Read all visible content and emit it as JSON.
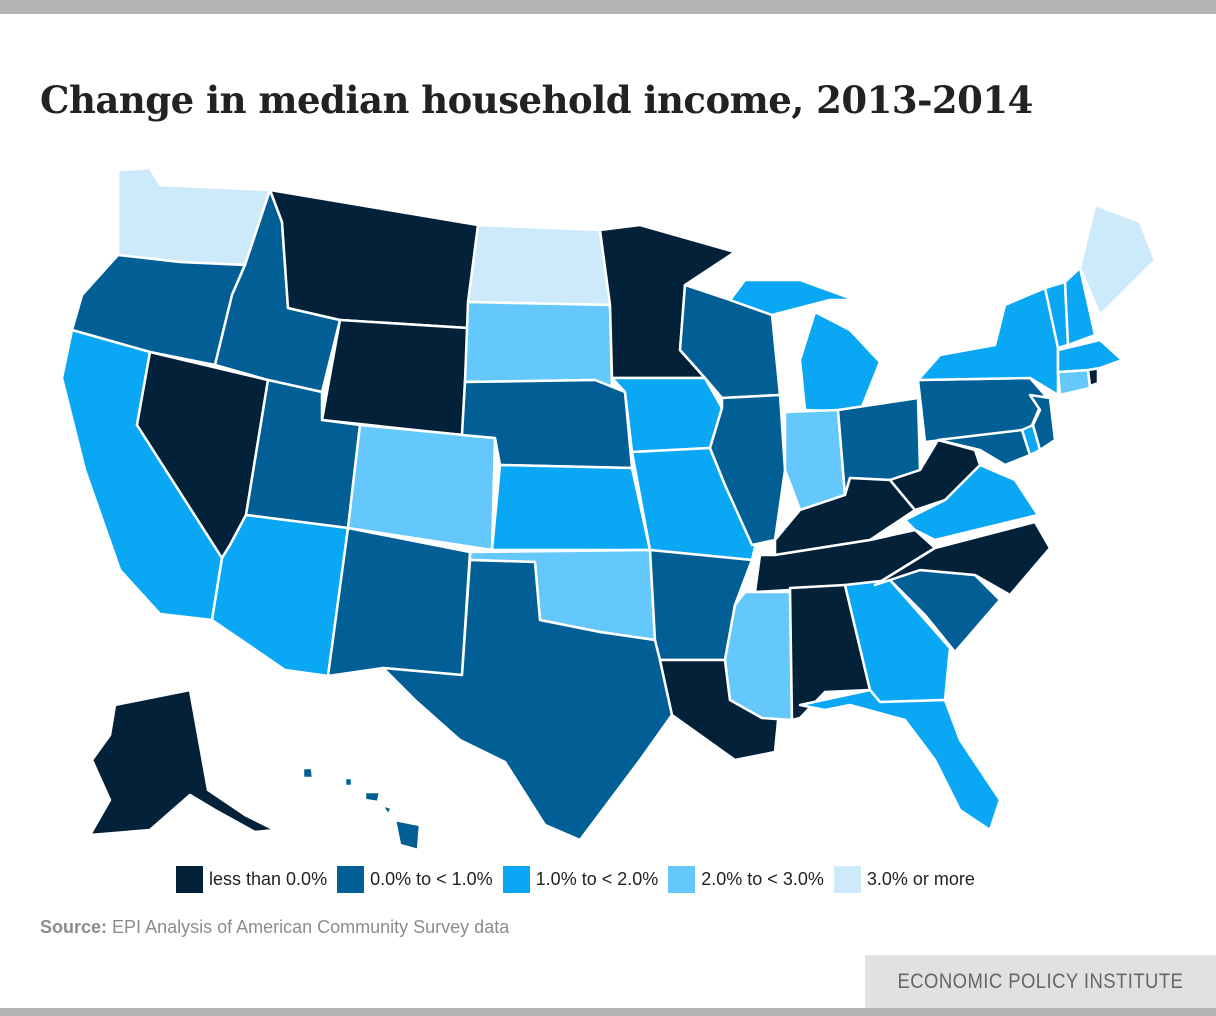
{
  "title": "Change in median household income, 2013-2014",
  "legend": [
    {
      "label": "less than 0.0%",
      "color": "#04213a"
    },
    {
      "label": "0.0% to < 1.0%",
      "color": "#015f96"
    },
    {
      "label": "1.0% to < 2.0%",
      "color": "#0aa7f5"
    },
    {
      "label": "2.0% to < 3.0%",
      "color": "#64c8fc"
    },
    {
      "label": "3.0% or more",
      "color": "#cdeafb"
    }
  ],
  "source": {
    "prefix": "Source:",
    "text": "EPI Analysis of American Community Survey data"
  },
  "brand": "ECONOMIC POLICY INSTITUTE",
  "states": {
    "WA": 4,
    "OR": 1,
    "CA": 2,
    "NV": 0,
    "ID": 1,
    "MT": 0,
    "WY": 0,
    "UT": 1,
    "AZ": 2,
    "CO": 3,
    "NM": 1,
    "ND": 4,
    "SD": 3,
    "NE": 1,
    "KS": 2,
    "OK": 3,
    "TX": 1,
    "MN": 0,
    "IA": 2,
    "MO": 2,
    "AR": 1,
    "LA": 0,
    "WI": 1,
    "IL": 1,
    "MI": 2,
    "IN": 3,
    "OH": 1,
    "KY": 0,
    "TN": 0,
    "MS": 3,
    "AL": 0,
    "GA": 2,
    "FL": 2,
    "SC": 1,
    "NC": 0,
    "VA": 2,
    "WV": 0,
    "MD": 1,
    "DE": 2,
    "NJ": 1,
    "PA": 1,
    "NY": 2,
    "CT": 3,
    "RI": 0,
    "MA": 2,
    "VT": 2,
    "NH": 2,
    "ME": 4,
    "AK": 0,
    "HI": 1
  }
}
